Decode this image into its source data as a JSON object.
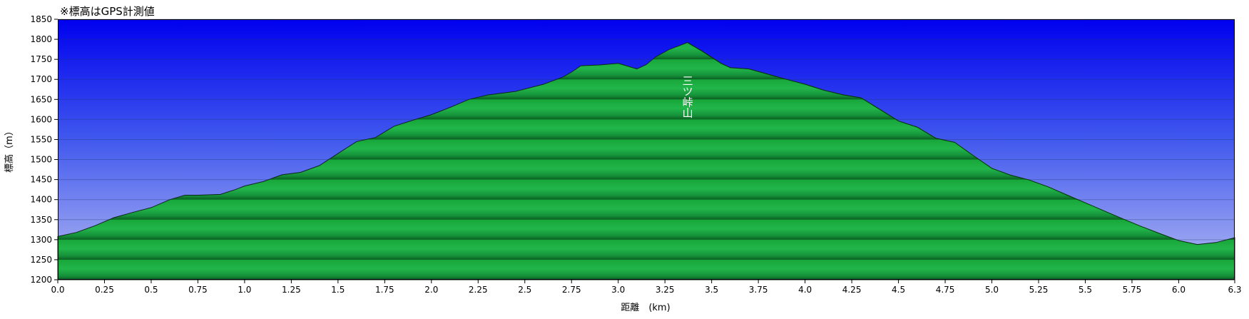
{
  "chart_data": {
    "type": "area",
    "note": "※標高はGPS計測値",
    "xlabel": "距離　(km)",
    "ylabel": "標高（m）",
    "xlim": [
      0,
      6.3
    ],
    "ylim": [
      1200,
      1850
    ],
    "x_ticks": [
      0.0,
      0.25,
      0.5,
      0.75,
      1.0,
      1.25,
      1.5,
      1.75,
      2.0,
      2.25,
      2.5,
      2.75,
      3.0,
      3.25,
      3.5,
      3.75,
      4.0,
      4.25,
      4.5,
      4.75,
      5.0,
      5.25,
      5.5,
      5.75,
      6.0,
      6.3
    ],
    "x_tick_labels": [
      "0.0",
      "0.25",
      "0.5",
      "0.75",
      "1.0",
      "1.25",
      "1.5",
      "1.75",
      "2.0",
      "2.25",
      "2.5",
      "2.75",
      "3.0",
      "3.25",
      "3.5",
      "3.75",
      "4.0",
      "4.25",
      "4.5",
      "4.75",
      "5.0",
      "5.25",
      "5.5",
      "5.75",
      "6.0",
      "6.3"
    ],
    "y_ticks": [
      1200,
      1250,
      1300,
      1350,
      1400,
      1450,
      1500,
      1550,
      1600,
      1650,
      1700,
      1750,
      1800,
      1850
    ],
    "y_tick_labels": [
      "1200",
      "1250",
      "1300",
      "1350",
      "1400",
      "1450",
      "1500",
      "1550",
      "1600",
      "1650",
      "1700",
      "1750",
      "1800",
      "1850"
    ],
    "grid": true,
    "annotations": [
      {
        "text": "三ツ峠山",
        "x": 3.37,
        "y": 1700
      }
    ],
    "series": [
      {
        "x": [
          0.0,
          0.1,
          0.2,
          0.3,
          0.4,
          0.5,
          0.6,
          0.68,
          0.75,
          0.87,
          0.95,
          1.0,
          1.1,
          1.2,
          1.3,
          1.4,
          1.5,
          1.6,
          1.7,
          1.8,
          1.9,
          2.0,
          2.1,
          2.2,
          2.3,
          2.45,
          2.6,
          2.7,
          2.75,
          2.8,
          2.9,
          3.0,
          3.05,
          3.1,
          3.15,
          3.2,
          3.27,
          3.37,
          3.45,
          3.55,
          3.6,
          3.7,
          3.8,
          3.9,
          4.0,
          4.1,
          4.2,
          4.3,
          4.4,
          4.5,
          4.6,
          4.7,
          4.8,
          4.9,
          5.0,
          5.1,
          5.2,
          5.3,
          5.4,
          5.5,
          5.6,
          5.7,
          5.8,
          5.9,
          6.0,
          6.1,
          6.2,
          6.3
        ],
        "y": [
          1308,
          1318,
          1335,
          1355,
          1368,
          1380,
          1400,
          1411,
          1411,
          1413,
          1425,
          1434,
          1445,
          1462,
          1468,
          1485,
          1515,
          1545,
          1555,
          1583,
          1598,
          1612,
          1630,
          1650,
          1661,
          1670,
          1688,
          1705,
          1718,
          1734,
          1736,
          1740,
          1733,
          1726,
          1737,
          1756,
          1774,
          1792,
          1770,
          1740,
          1729,
          1726,
          1713,
          1700,
          1688,
          1673,
          1662,
          1654,
          1625,
          1596,
          1581,
          1553,
          1543,
          1510,
          1478,
          1461,
          1449,
          1432,
          1412,
          1392,
          1372,
          1352,
          1333,
          1315,
          1298,
          1288,
          1293,
          1305
        ]
      }
    ]
  }
}
